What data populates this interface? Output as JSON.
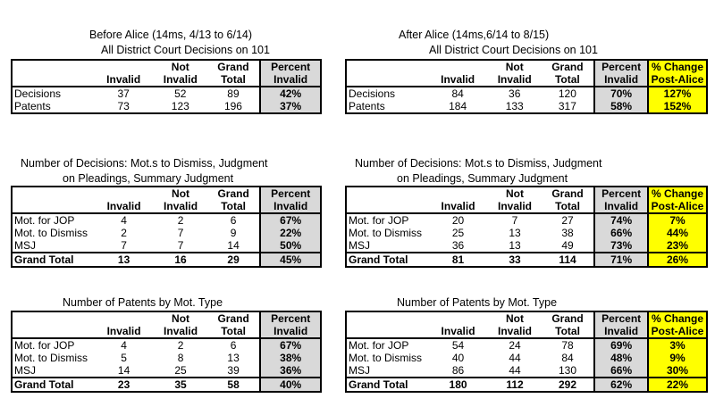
{
  "left": {
    "top": {
      "caption1": "Before Alice (14ms, 4/13 to 6/14)",
      "caption2": "All District Court Decisions on 101",
      "headers": [
        [
          "",
          ""
        ],
        [
          "",
          "Invalid"
        ],
        [
          "Not",
          "Invalid"
        ],
        [
          "Grand",
          "Total"
        ],
        [
          "Percent",
          "Invalid"
        ]
      ],
      "rows": [
        [
          "Decisions",
          "37",
          "52",
          "89",
          "42%"
        ],
        [
          "Patents",
          "73",
          "123",
          "196",
          "37%"
        ]
      ]
    },
    "mid": {
      "caption1": "Number of Decisions: Mot.s to Dismiss, Judgment",
      "caption2": "on Pleadings, Summary Judgment",
      "headers": [
        [
          "",
          ""
        ],
        [
          "",
          "Invalid"
        ],
        [
          "Not",
          "Invalid"
        ],
        [
          "Grand",
          "Total"
        ],
        [
          "Percent",
          "Invalid"
        ]
      ],
      "rows": [
        [
          "Mot. for JOP",
          "4",
          "2",
          "6",
          "67%"
        ],
        [
          "Mot. to Dismiss",
          "2",
          "7",
          "9",
          "22%"
        ],
        [
          "MSJ",
          "7",
          "7",
          "14",
          "50%"
        ]
      ],
      "total": [
        "Grand Total",
        "13",
        "16",
        "29",
        "45%"
      ]
    },
    "bot": {
      "caption1": "Number of Patents by Mot. Type",
      "headers": [
        [
          "",
          ""
        ],
        [
          "",
          "Invalid"
        ],
        [
          "Not",
          "Invalid"
        ],
        [
          "Grand",
          "Total"
        ],
        [
          "Percent",
          "Invalid"
        ]
      ],
      "rows": [
        [
          "Mot. for JOP",
          "4",
          "2",
          "6",
          "67%"
        ],
        [
          "Mot. to Dismiss",
          "5",
          "8",
          "13",
          "38%"
        ],
        [
          "MSJ",
          "14",
          "25",
          "39",
          "36%"
        ]
      ],
      "total": [
        "Grand Total",
        "23",
        "35",
        "58",
        "40%"
      ]
    }
  },
  "right": {
    "top": {
      "caption1": "After Alice (14ms,6/14 to 8/15)",
      "caption2": "All District Court Decisions on 101",
      "headers": [
        [
          "",
          ""
        ],
        [
          "",
          "Invalid"
        ],
        [
          "Not",
          "Invalid"
        ],
        [
          "Grand",
          "Total"
        ],
        [
          "Percent",
          "Invalid"
        ],
        [
          "% Change",
          "Post-Alice"
        ]
      ],
      "rows": [
        [
          "Decisions",
          "84",
          "36",
          "120",
          "70%",
          "127%"
        ],
        [
          "Patents",
          "184",
          "133",
          "317",
          "58%",
          "152%"
        ]
      ]
    },
    "mid": {
      "caption1": "Number of Decisions: Mot.s to Dismiss, Judgment",
      "caption2": "on Pleadings, Summary Judgment",
      "headers": [
        [
          "",
          ""
        ],
        [
          "",
          "Invalid"
        ],
        [
          "Not",
          "Invalid"
        ],
        [
          "Grand",
          "Total"
        ],
        [
          "Percent",
          "Invalid"
        ],
        [
          "% Change",
          "Post-Alice"
        ]
      ],
      "rows": [
        [
          "Mot. for JOP",
          "20",
          "7",
          "27",
          "74%",
          "7%"
        ],
        [
          "Mot. to Dismiss",
          "25",
          "13",
          "38",
          "66%",
          "44%"
        ],
        [
          "MSJ",
          "36",
          "13",
          "49",
          "73%",
          "23%"
        ]
      ],
      "total": [
        "Grand Total",
        "81",
        "33",
        "114",
        "71%",
        "26%"
      ]
    },
    "bot": {
      "caption1": "Number of Patents by Mot. Type",
      "headers": [
        [
          "",
          ""
        ],
        [
          "",
          "Invalid"
        ],
        [
          "Not",
          "Invalid"
        ],
        [
          "Grand",
          "Total"
        ],
        [
          "Percent",
          "Invalid"
        ],
        [
          "% Change",
          "Post-Alice"
        ]
      ],
      "rows": [
        [
          "Mot. for JOP",
          "54",
          "24",
          "78",
          "69%",
          "3%"
        ],
        [
          "Mot. to Dismiss",
          "40",
          "44",
          "84",
          "48%",
          "9%"
        ],
        [
          "MSJ",
          "86",
          "44",
          "130",
          "66%",
          "30%"
        ]
      ],
      "total": [
        "Grand Total",
        "180",
        "112",
        "292",
        "62%",
        "22%"
      ]
    }
  }
}
